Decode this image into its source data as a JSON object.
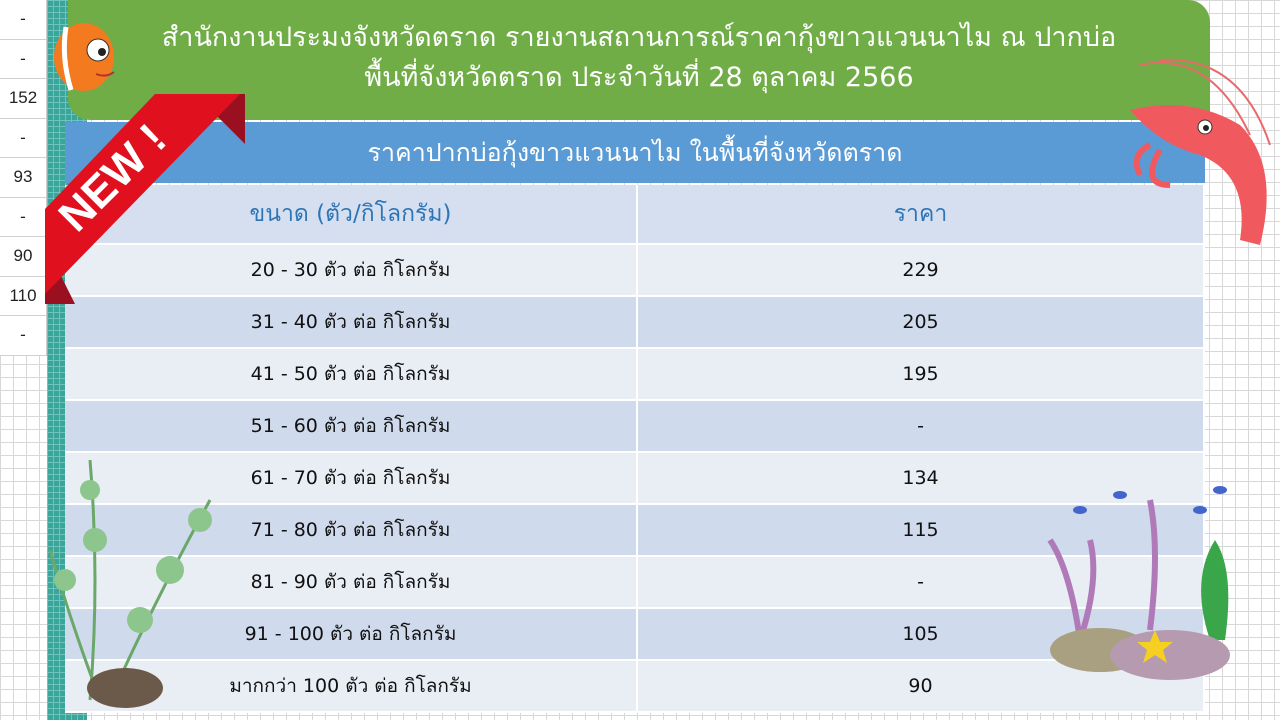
{
  "left_column": [
    "-",
    "-",
    "152",
    "-",
    "93",
    "-",
    "90",
    "110",
    "-"
  ],
  "header": {
    "line1": "สำนักงานประมงจังหวัดตราด รายงานสถานการณ์ราคากุ้งขาวแวนนาไม ณ ปากบ่อ",
    "line2": "พื้นที่จังหวัดตราด ประจำวันที่ 28 ตุลาคม 2566"
  },
  "subheader": "ราคาปากบ่อกุ้งขาวแวนนาไม ในพื้นที่จังหวัดตราด",
  "badge": "NEW !",
  "table": {
    "columns": [
      "ขนาด (ตัว/กิโลกรัม)",
      "ราคา"
    ],
    "rows": [
      [
        "20 - 30 ตัว ต่อ กิโลกรัม",
        "229"
      ],
      [
        "31 - 40 ตัว ต่อ กิโลกรัม",
        "205"
      ],
      [
        "41 - 50 ตัว ต่อ กิโลกรัม",
        "195"
      ],
      [
        "51 - 60 ตัว ต่อ กิโลกรัม",
        "-"
      ],
      [
        "61 - 70 ตัว ต่อ กิโลกรัม",
        "134"
      ],
      [
        "71 - 80 ตัว ต่อ กิโลกรัม",
        "115"
      ],
      [
        "81 - 90 ตัว ต่อ กิโลกรัม",
        "-"
      ],
      [
        "91 - 100 ตัว ต่อ กิโลกรัม",
        "105"
      ],
      [
        "มากกว่า 100 ตัว ต่อ กิโลกรัม",
        "90"
      ]
    ]
  },
  "colors": {
    "header_green": "#70ad47",
    "subheader_blue": "#5b9bd5",
    "column_header_text": "#2e75b6",
    "ribbon_red": "#e0101e"
  }
}
